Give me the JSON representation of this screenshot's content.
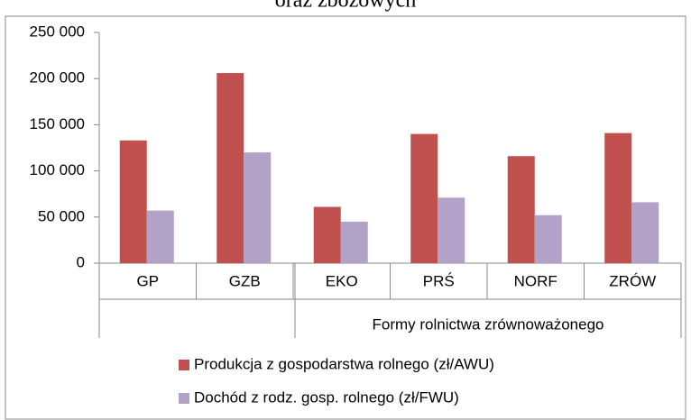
{
  "chart_data": {
    "type": "bar",
    "title": "oraz zbożowych",
    "categories": [
      "GP",
      "GZB",
      "EKO",
      "PRŚ",
      "NORF",
      "ZRÓW"
    ],
    "group_label": "Formy rolnictwa zrównoważonego",
    "series": [
      {
        "name": "Produkcja z gospodarstwa rolnego (zł/AWU)",
        "color": "#c0504d",
        "values": [
          133000,
          206000,
          61000,
          140000,
          116000,
          141000
        ]
      },
      {
        "name": "Dochód z rodz. gosp. rolnego (zł/FWU)",
        "color": "#b3a2c7",
        "values": [
          57000,
          120000,
          45000,
          71000,
          52000,
          66000
        ]
      }
    ],
    "ylim": [
      0,
      250000
    ],
    "yticks": [
      0,
      {
        "value": 50000,
        "label": "50 000"
      },
      {
        "value": 100000,
        "label": "100 000"
      },
      {
        "value": 150000,
        "label": "150 000"
      },
      {
        "value": 200000,
        "label": "200 000"
      },
      {
        "value": 250000,
        "label": "250 000"
      }
    ],
    "grid": false
  }
}
